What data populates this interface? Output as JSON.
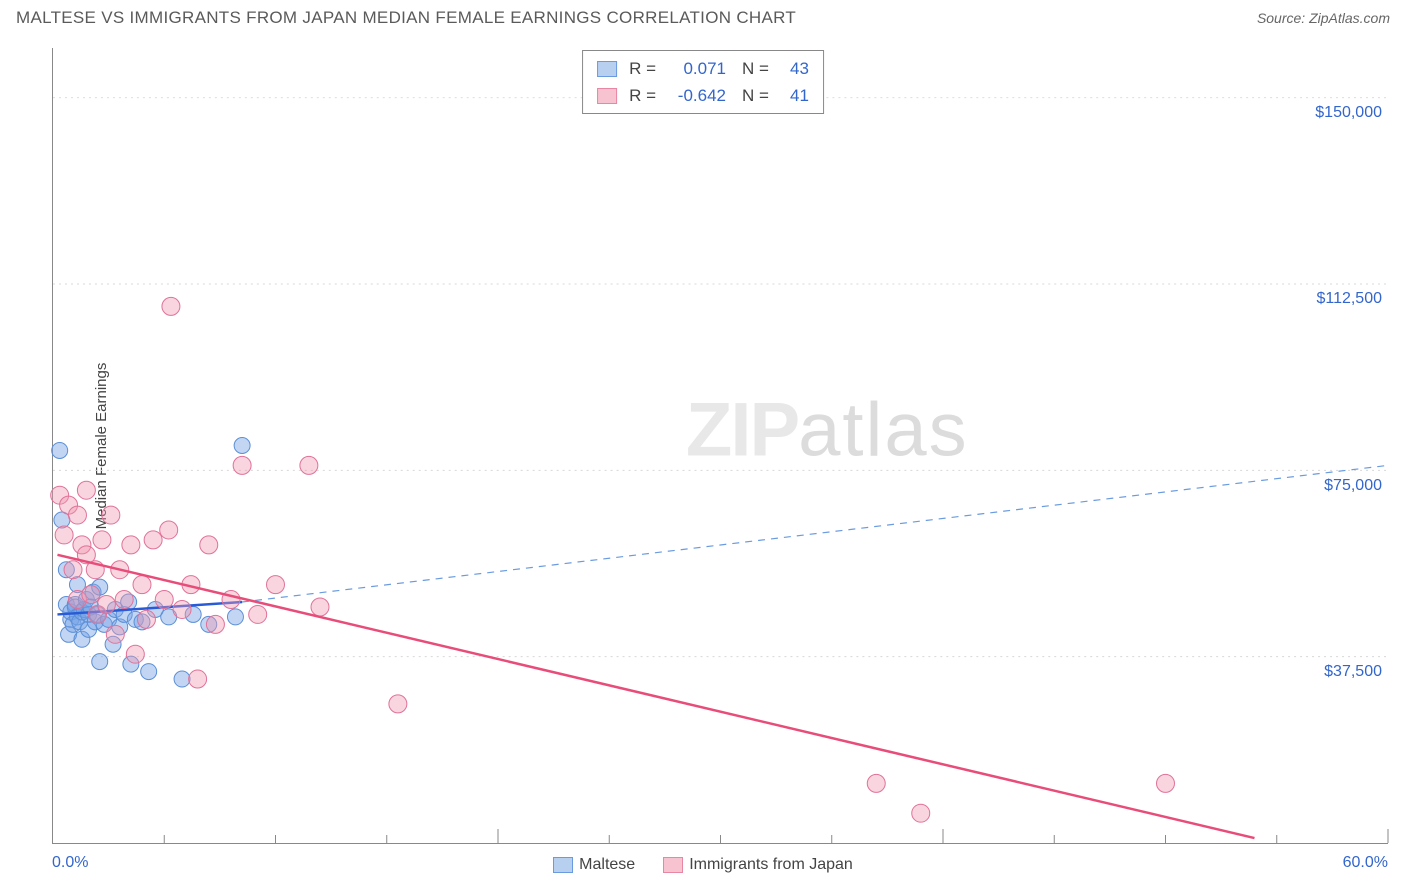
{
  "header": {
    "title": "MALTESE VS IMMIGRANTS FROM JAPAN MEDIAN FEMALE EARNINGS CORRELATION CHART",
    "source_label": "Source: ZipAtlas.com"
  },
  "watermark": {
    "bold": "ZIP",
    "light": "atlas"
  },
  "chart": {
    "type": "scatter",
    "y_axis_label": "Median Female Earnings",
    "xlim": [
      0,
      60
    ],
    "ylim": [
      0,
      160000
    ],
    "x_min_label": "0.0%",
    "x_max_label": "60.0%",
    "y_ticks": [
      {
        "value": 37500,
        "label": "$37,500"
      },
      {
        "value": 75000,
        "label": "$75,000"
      },
      {
        "value": 112500,
        "label": "$112,500"
      },
      {
        "value": 150000,
        "label": "$150,000"
      }
    ],
    "x_minor_ticks": [
      5,
      10,
      15,
      25,
      30,
      35,
      45,
      50,
      55
    ],
    "x_major_ticks": [
      20,
      40,
      60
    ],
    "grid_color": "#d8d8d8",
    "grid_dash": "2,4",
    "background_color": "#ffffff",
    "top_legend": {
      "rows": [
        {
          "swatch_fill": "#b8d0f0",
          "swatch_stroke": "#6a9be0",
          "r_label": "R =",
          "r_value": "0.071",
          "n_label": "N =",
          "n_value": "43"
        },
        {
          "swatch_fill": "#f7c3d1",
          "swatch_stroke": "#e887a3",
          "r_label": "R =",
          "r_value": "-0.642",
          "n_label": "N =",
          "n_value": "41"
        }
      ]
    },
    "bottom_legend": {
      "items": [
        {
          "swatch_fill": "#b8d0f0",
          "swatch_stroke": "#6a9be0",
          "label": "Maltese"
        },
        {
          "swatch_fill": "#f7c3d1",
          "swatch_stroke": "#e887a3",
          "label": "Immigrants from Japan"
        }
      ]
    },
    "series": [
      {
        "name": "Maltese",
        "marker_fill": "rgba(120,165,230,0.45)",
        "marker_stroke": "#5b8fd6",
        "marker_radius": 8,
        "trend": {
          "solid": {
            "x1": 0.2,
            "y1": 46000,
            "x2": 8.5,
            "y2": 48500,
            "stroke": "#2a5bd7",
            "width": 2.5
          },
          "dash": {
            "x1": 8.5,
            "y1": 48500,
            "x2": 60,
            "y2": 76000,
            "stroke": "#6a9be0",
            "width": 1.2,
            "dash": "7,6"
          }
        },
        "points": [
          [
            0.3,
            79000
          ],
          [
            0.4,
            65000
          ],
          [
            0.6,
            55000
          ],
          [
            0.6,
            48000
          ],
          [
            0.7,
            42000
          ],
          [
            0.8,
            45000
          ],
          [
            0.8,
            46500
          ],
          [
            0.9,
            44000
          ],
          [
            1.0,
            48000
          ],
          [
            1.0,
            47500
          ],
          [
            1.1,
            45500
          ],
          [
            1.1,
            52000
          ],
          [
            1.2,
            44500
          ],
          [
            1.3,
            46500
          ],
          [
            1.3,
            41000
          ],
          [
            1.4,
            47000
          ],
          [
            1.5,
            49000
          ],
          [
            1.6,
            43000
          ],
          [
            1.6,
            46000
          ],
          [
            1.7,
            47500
          ],
          [
            1.8,
            50500
          ],
          [
            1.9,
            44500
          ],
          [
            2.0,
            46000
          ],
          [
            2.1,
            51500
          ],
          [
            2.1,
            36500
          ],
          [
            2.3,
            44000
          ],
          [
            2.5,
            45000
          ],
          [
            2.7,
            40000
          ],
          [
            2.8,
            47000
          ],
          [
            3.0,
            43500
          ],
          [
            3.2,
            46000
          ],
          [
            3.4,
            48500
          ],
          [
            3.5,
            36000
          ],
          [
            3.7,
            45000
          ],
          [
            4.0,
            44500
          ],
          [
            4.3,
            34500
          ],
          [
            4.6,
            47000
          ],
          [
            5.2,
            45500
          ],
          [
            5.8,
            33000
          ],
          [
            6.3,
            46000
          ],
          [
            7.0,
            44000
          ],
          [
            8.2,
            45500
          ],
          [
            8.5,
            80000
          ]
        ]
      },
      {
        "name": "Immigrants from Japan",
        "marker_fill": "rgba(240,150,175,0.40)",
        "marker_stroke": "#e07299",
        "marker_radius": 9,
        "trend": {
          "solid": {
            "x1": 0.2,
            "y1": 58000,
            "x2": 54,
            "y2": 1000,
            "stroke": "#e84d7a",
            "width": 2.5
          }
        },
        "points": [
          [
            0.3,
            70000
          ],
          [
            0.5,
            62000
          ],
          [
            0.7,
            68000
          ],
          [
            0.9,
            55000
          ],
          [
            1.1,
            66000
          ],
          [
            1.1,
            49000
          ],
          [
            1.3,
            60000
          ],
          [
            1.5,
            58000
          ],
          [
            1.5,
            71000
          ],
          [
            1.7,
            50000
          ],
          [
            1.9,
            55000
          ],
          [
            2.0,
            46000
          ],
          [
            2.2,
            61000
          ],
          [
            2.4,
            48000
          ],
          [
            2.6,
            66000
          ],
          [
            2.8,
            42000
          ],
          [
            3.0,
            55000
          ],
          [
            3.2,
            49000
          ],
          [
            3.5,
            60000
          ],
          [
            3.7,
            38000
          ],
          [
            4.0,
            52000
          ],
          [
            4.2,
            45000
          ],
          [
            4.5,
            61000
          ],
          [
            5.0,
            49000
          ],
          [
            5.2,
            63000
          ],
          [
            5.3,
            108000
          ],
          [
            5.8,
            47000
          ],
          [
            6.2,
            52000
          ],
          [
            6.5,
            33000
          ],
          [
            7.0,
            60000
          ],
          [
            7.3,
            44000
          ],
          [
            8.0,
            49000
          ],
          [
            8.5,
            76000
          ],
          [
            9.2,
            46000
          ],
          [
            10.0,
            52000
          ],
          [
            11.5,
            76000
          ],
          [
            12.0,
            47500
          ],
          [
            15.5,
            28000
          ],
          [
            37.0,
            12000
          ],
          [
            39.0,
            6000
          ],
          [
            50.0,
            12000
          ]
        ]
      }
    ]
  }
}
